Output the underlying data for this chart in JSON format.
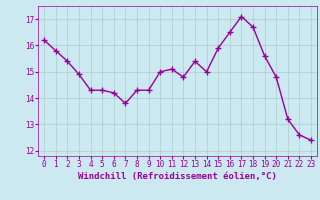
{
  "x": [
    0,
    1,
    2,
    3,
    4,
    5,
    6,
    7,
    8,
    9,
    10,
    11,
    12,
    13,
    14,
    15,
    16,
    17,
    18,
    19,
    20,
    21,
    22,
    23
  ],
  "y": [
    16.2,
    15.8,
    15.4,
    14.9,
    14.3,
    14.3,
    14.2,
    13.8,
    14.3,
    14.3,
    15.0,
    15.1,
    14.8,
    15.4,
    15.0,
    15.9,
    16.5,
    17.1,
    16.7,
    15.6,
    14.8,
    13.2,
    12.6,
    12.4
  ],
  "line_color": "#990099",
  "marker": "+",
  "marker_size": 4,
  "bg_color": "#cce8f0",
  "grid_color": "#aacccc",
  "xlabel": "Windchill (Refroidissement éolien,°C)",
  "ylim": [
    11.8,
    17.5
  ],
  "yticks": [
    12,
    13,
    14,
    15,
    16,
    17
  ],
  "xticks": [
    0,
    1,
    2,
    3,
    4,
    5,
    6,
    7,
    8,
    9,
    10,
    11,
    12,
    13,
    14,
    15,
    16,
    17,
    18,
    19,
    20,
    21,
    22,
    23
  ],
  "xlabel_fontsize": 6.5,
  "tick_fontsize": 5.5,
  "line_width": 1.0
}
